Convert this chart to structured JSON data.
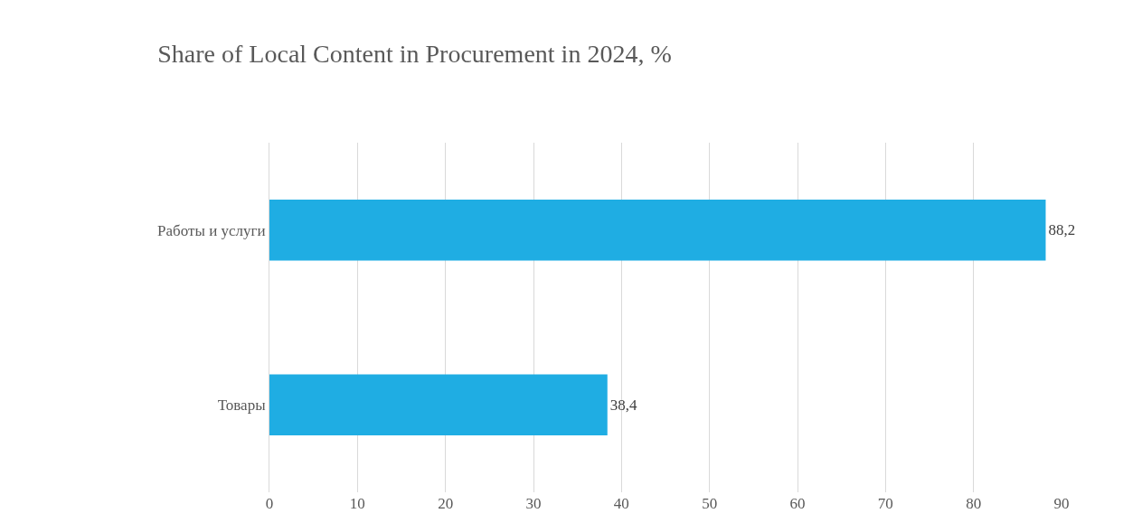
{
  "chart_data": {
    "type": "bar",
    "orientation": "horizontal",
    "title": "Share of Local Content in Procurement in 2024, %",
    "categories": [
      "Работы и услуги",
      "Товары"
    ],
    "values": [
      88.2,
      38.4
    ],
    "value_labels": [
      "88,2",
      "38,4"
    ],
    "color": "#1fade3",
    "xlim": [
      0,
      90
    ],
    "xticks": [
      0,
      10,
      20,
      30,
      40,
      50,
      60,
      70,
      80,
      90
    ],
    "grid": "x",
    "legend": false
  }
}
